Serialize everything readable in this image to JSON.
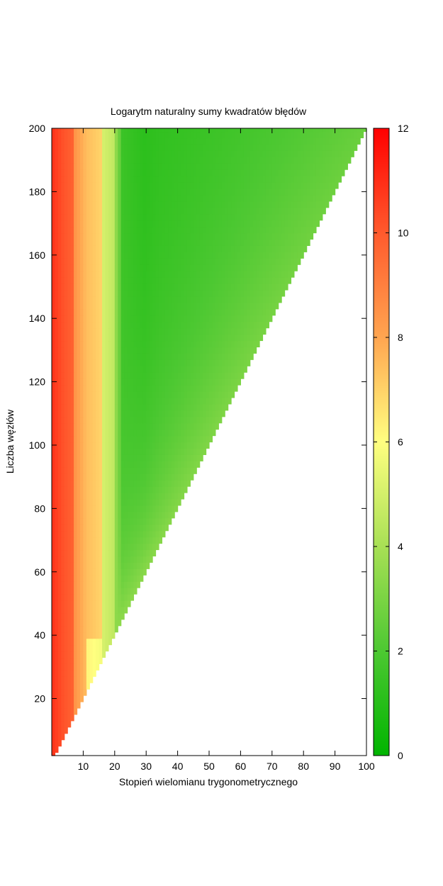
{
  "chart_data": {
    "type": "heatmap",
    "title": "Logarytm naturalny sumy kwadratów błędów",
    "xlabel": "Stopień wielomianu trygonometrycznego",
    "ylabel": "Liczba węzłów",
    "xlim": [
      0,
      100
    ],
    "ylim": [
      2,
      200
    ],
    "x_ticks": [
      10,
      20,
      30,
      40,
      50,
      60,
      70,
      80,
      90,
      100
    ],
    "y_ticks": [
      20,
      40,
      60,
      80,
      100,
      120,
      140,
      160,
      180,
      200
    ],
    "domain_note_region": "defined where degree <= nodes / 2",
    "value_profile": {
      "by_degree": [
        [
          1,
          10.8
        ],
        [
          4,
          10.2
        ],
        [
          7,
          9.8
        ],
        [
          8,
          8.4
        ],
        [
          11,
          7.6
        ],
        [
          12,
          7.4
        ],
        [
          16,
          7.0
        ],
        [
          17,
          5.0
        ],
        [
          20,
          4.6
        ],
        [
          21,
          3.4
        ],
        [
          22,
          2.6
        ],
        [
          23,
          1.5
        ],
        [
          30,
          1.0
        ],
        [
          35,
          1.1
        ]
      ],
      "near_boundary_value": 3.6,
      "near_boundary_high_nodes_value": 2.6
    },
    "colorbar": {
      "range": [
        0,
        12
      ],
      "ticks": [
        0,
        2,
        4,
        6,
        8,
        10,
        12
      ],
      "colors": [
        [
          0,
          "#00b400"
        ],
        [
          2,
          "#4dc832"
        ],
        [
          4,
          "#a8e055"
        ],
        [
          6,
          "#ffff80"
        ],
        [
          8,
          "#ffa550"
        ],
        [
          10,
          "#ff5a2d"
        ],
        [
          12,
          "#ff0000"
        ]
      ]
    }
  }
}
